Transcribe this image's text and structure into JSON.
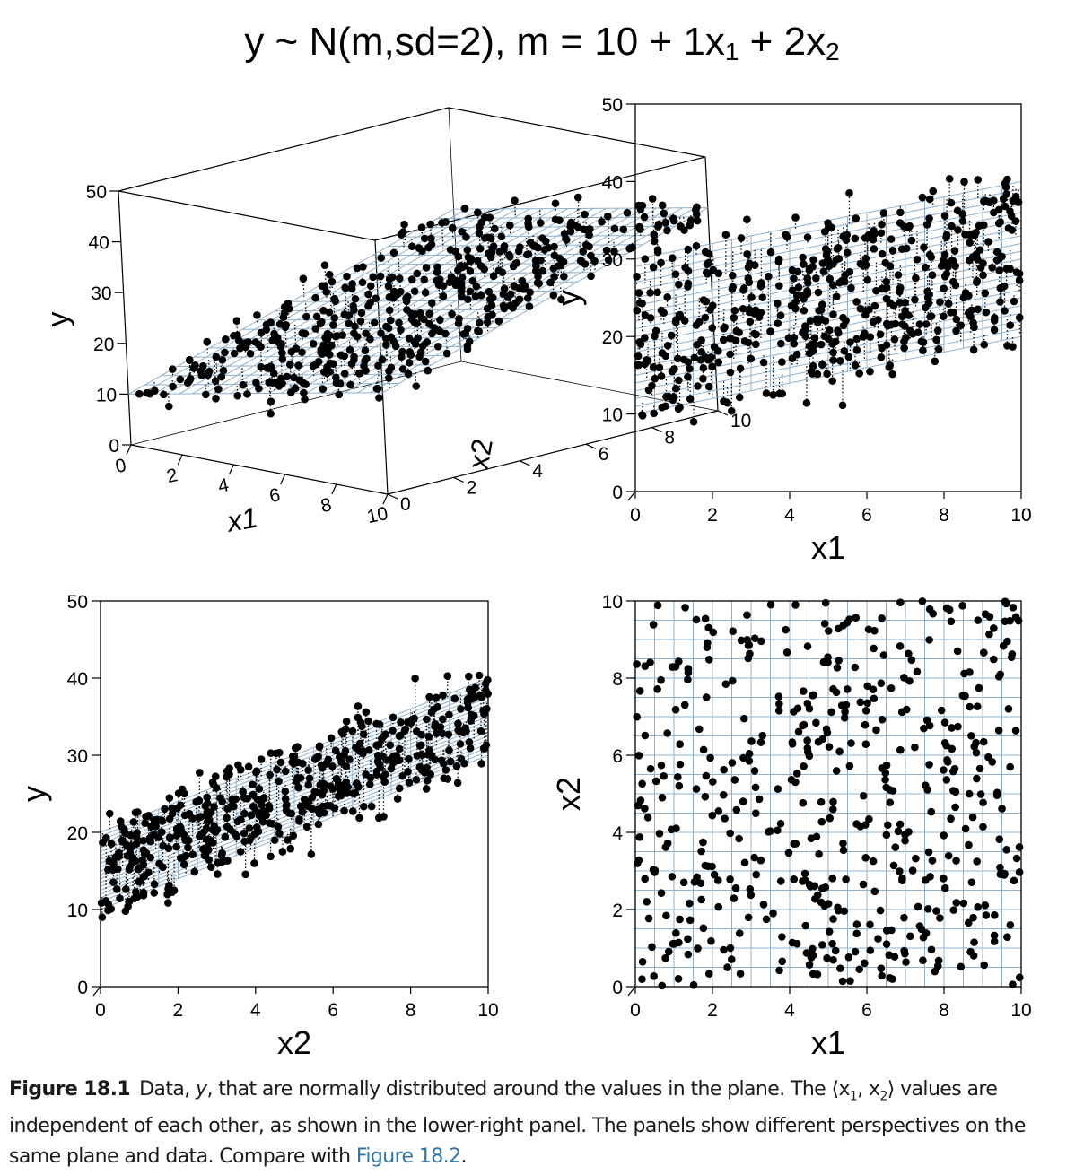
{
  "title": {
    "prefix": "y ~ N(m,sd=2), m = 10 + 1x",
    "sub1": "1",
    "middle": " + 2x",
    "sub2": "2"
  },
  "caption": {
    "label": "Figure 18.1",
    "text_a": "Data, ",
    "text_y": "y",
    "text_b": ", that are normally distributed around the values in the plane. The ⟨x",
    "sub1": "1",
    "comma": ", x",
    "sub2": "2",
    "text_c": "⟩ values are independent of each other, as shown in the lower-right panel. The panels show different perspectives on the same plane and data. Compare with ",
    "xref": "Figure 18.2",
    "end": "."
  },
  "colors": {
    "plane": "#8fb0cc",
    "points": "#000000",
    "axis": "#000000",
    "xref": "#2e75a8"
  },
  "chart_data": [
    {
      "type": "scatter",
      "panel": "3d-perspective",
      "model": {
        "intercept": 10,
        "b1": 1,
        "b2": 2,
        "sd": 2
      },
      "xlabel": "x1",
      "ylabel": "x2",
      "zlabel": "y",
      "x_ticks": [
        "0",
        "2",
        "4",
        "6",
        "8",
        "10"
      ],
      "y_ticks": [
        "0",
        "2",
        "4",
        "6",
        "8",
        "10"
      ],
      "z_ticks": [
        "0",
        "10",
        "20",
        "30",
        "40",
        "50"
      ],
      "xlim": [
        0,
        10
      ],
      "ylim": [
        0,
        10
      ],
      "zlim": [
        0,
        50
      ],
      "n_points": 500
    },
    {
      "type": "scatter",
      "panel": "x1-y",
      "xlabel": "x1",
      "ylabel": "y",
      "x_ticks": [
        "0",
        "2",
        "4",
        "6",
        "8",
        "10"
      ],
      "y_ticks": [
        "0",
        "10",
        "20",
        "30",
        "40",
        "50"
      ],
      "xlim": [
        0,
        10
      ],
      "ylim": [
        0,
        50
      ]
    },
    {
      "type": "scatter",
      "panel": "x2-y",
      "xlabel": "x2",
      "ylabel": "y",
      "x_ticks": [
        "0",
        "2",
        "4",
        "6",
        "8",
        "10"
      ],
      "y_ticks": [
        "0",
        "10",
        "20",
        "30",
        "40",
        "50"
      ],
      "xlim": [
        0,
        10
      ],
      "ylim": [
        0,
        50
      ]
    },
    {
      "type": "scatter",
      "panel": "x1-x2",
      "xlabel": "x1",
      "ylabel": "x2",
      "x_ticks": [
        "0",
        "2",
        "4",
        "6",
        "8",
        "10"
      ],
      "y_ticks": [
        "0",
        "2",
        "4",
        "6",
        "8",
        "10"
      ],
      "xlim": [
        0,
        10
      ],
      "ylim": [
        0,
        10
      ]
    }
  ]
}
